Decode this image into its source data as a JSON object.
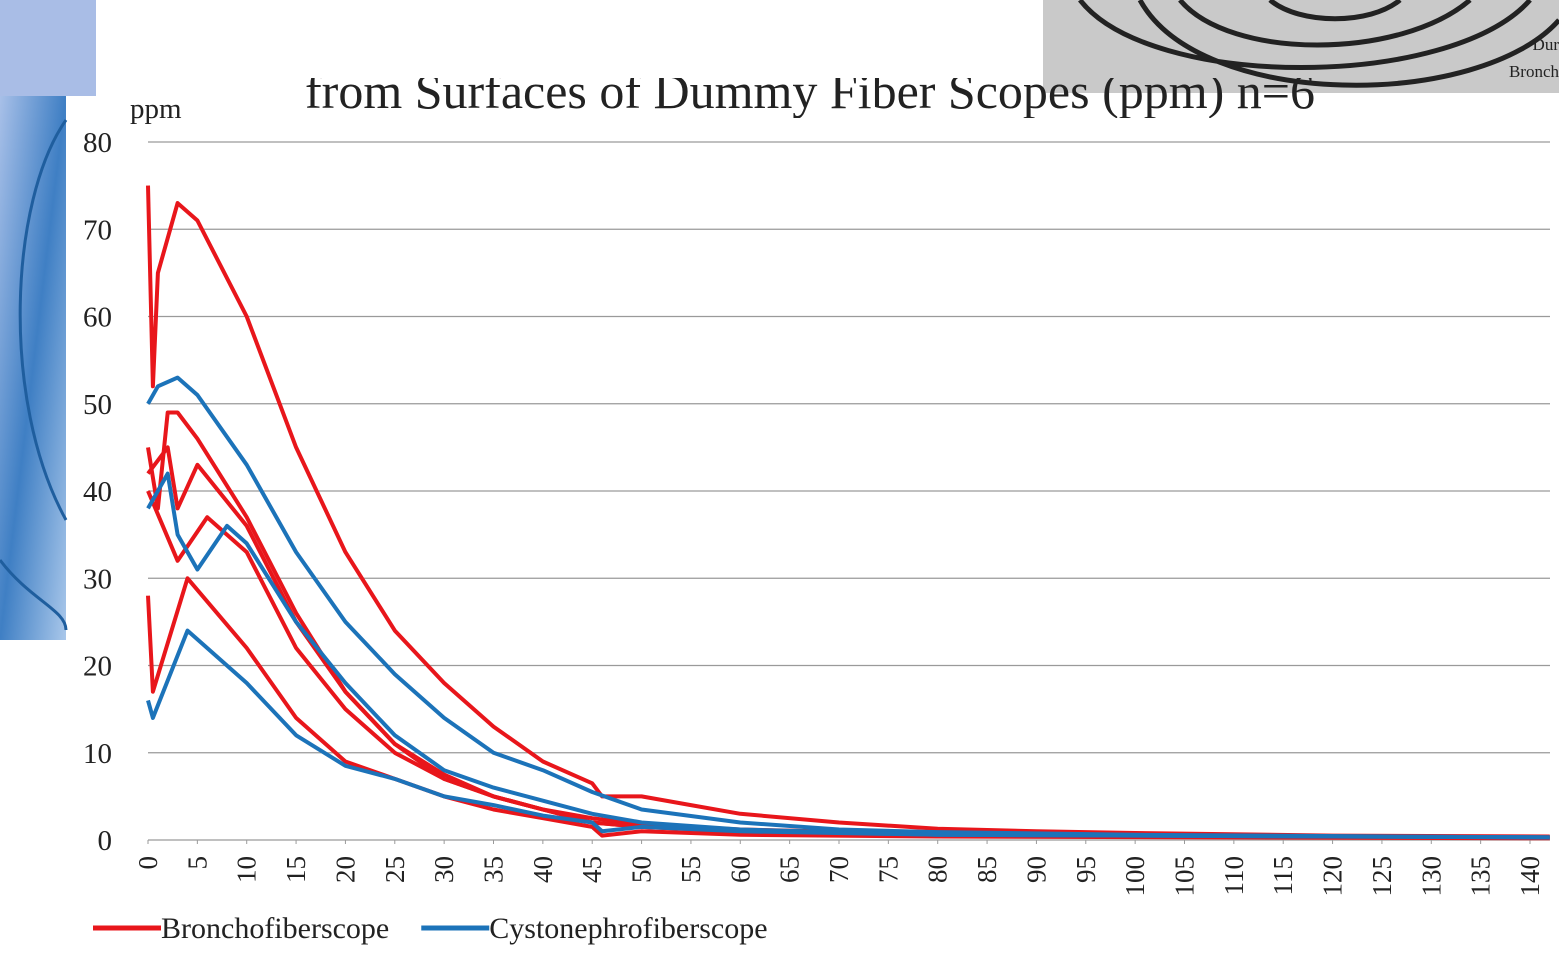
{
  "chart_data": {
    "type": "line",
    "title": "from Surfaces of Dummy Fiber Scopes (ppm) n=6",
    "y_label": "ppm",
    "photo_caption": [
      "Dur",
      "Bronch"
    ],
    "xlim": [
      0,
      142
    ],
    "ylim": [
      0,
      80
    ],
    "xticks": [
      0,
      5,
      10,
      15,
      20,
      25,
      30,
      35,
      40,
      45,
      50,
      55,
      60,
      65,
      70,
      75,
      80,
      85,
      90,
      95,
      100,
      105,
      110,
      115,
      120,
      125,
      130,
      135,
      140
    ],
    "yticks": [
      0,
      10,
      20,
      30,
      40,
      50,
      60,
      70,
      80
    ],
    "grid": true,
    "series": [
      {
        "name": "Bronchofiberscope",
        "color": "#e8161b",
        "curves": [
          {
            "x": [
              0,
              0.5,
              1,
              3,
              5,
              10,
              15,
              20,
              25,
              30,
              35,
              40,
              45,
              46,
              50,
              55,
              60,
              70,
              80,
              90,
              100,
              120,
              142
            ],
            "values": [
              75,
              52,
              65,
              73,
              71,
              60,
              45,
              33,
              24,
              18,
              13,
              9,
              6.5,
              5,
              5,
              4,
              3,
              2,
              1.3,
              1,
              0.8,
              0.5,
              0.4
            ]
          },
          {
            "x": [
              0,
              1,
              2,
              3,
              5,
              10,
              15,
              20,
              25,
              30,
              35,
              40,
              45,
              50,
              60,
              80,
              100,
              142
            ],
            "values": [
              45,
              38,
              49,
              49,
              46,
              37,
              26,
              17,
              11,
              7.5,
              5,
              3.5,
              2.5,
              1.8,
              1.2,
              0.7,
              0.5,
              0.3
            ]
          },
          {
            "x": [
              0,
              2,
              3,
              5,
              10,
              15,
              20,
              25,
              30,
              35,
              40,
              45,
              50,
              60,
              80,
              142
            ],
            "values": [
              42,
              45,
              38,
              43,
              36,
              25,
              17,
              11,
              7,
              5,
              3.5,
              2,
              1.5,
              1,
              0.6,
              0.3
            ]
          },
          {
            "x": [
              0,
              3,
              6,
              10,
              15,
              20,
              25,
              30,
              35,
              40,
              45,
              50,
              60,
              80,
              142
            ],
            "values": [
              40,
              32,
              37,
              33,
              22,
              15,
              10,
              7,
              5,
              3.5,
              2,
              1.5,
              1,
              0.6,
              0.3
            ]
          },
          {
            "x": [
              0,
              0.5,
              4,
              10,
              15,
              20,
              25,
              30,
              35,
              40,
              45,
              46,
              50,
              60,
              80,
              142
            ],
            "values": [
              28,
              17,
              30,
              22,
              14,
              9,
              7,
              5,
              3.5,
              2.5,
              1.5,
              0.5,
              1,
              0.6,
              0.4,
              0.2
            ]
          }
        ]
      },
      {
        "name": "Cystonephrofiberscope",
        "color": "#1c73b9",
        "curves": [
          {
            "x": [
              0,
              1,
              3,
              5,
              10,
              15,
              20,
              25,
              30,
              35,
              40,
              45,
              50,
              60,
              70,
              80,
              100,
              142
            ],
            "values": [
              50,
              52,
              53,
              51,
              43,
              33,
              25,
              19,
              14,
              10,
              8,
              5.5,
              3.5,
              2,
              1.2,
              0.9,
              0.6,
              0.3
            ]
          },
          {
            "x": [
              0,
              2,
              3,
              5,
              8,
              10,
              15,
              20,
              25,
              30,
              35,
              40,
              45,
              50,
              60,
              80,
              142
            ],
            "values": [
              38,
              42,
              35,
              31,
              36,
              34,
              25,
              18,
              12,
              8,
              6,
              4.5,
              3,
              2,
              1.2,
              0.6,
              0.3
            ]
          },
          {
            "x": [
              0,
              0.5,
              4,
              10,
              15,
              20,
              25,
              30,
              35,
              40,
              45,
              46,
              50,
              60,
              80,
              142
            ],
            "values": [
              16,
              14,
              24,
              18,
              12,
              8.5,
              7,
              5,
              4,
              2.8,
              2,
              1,
              1.5,
              1,
              0.6,
              0.3
            ]
          }
        ]
      }
    ]
  }
}
